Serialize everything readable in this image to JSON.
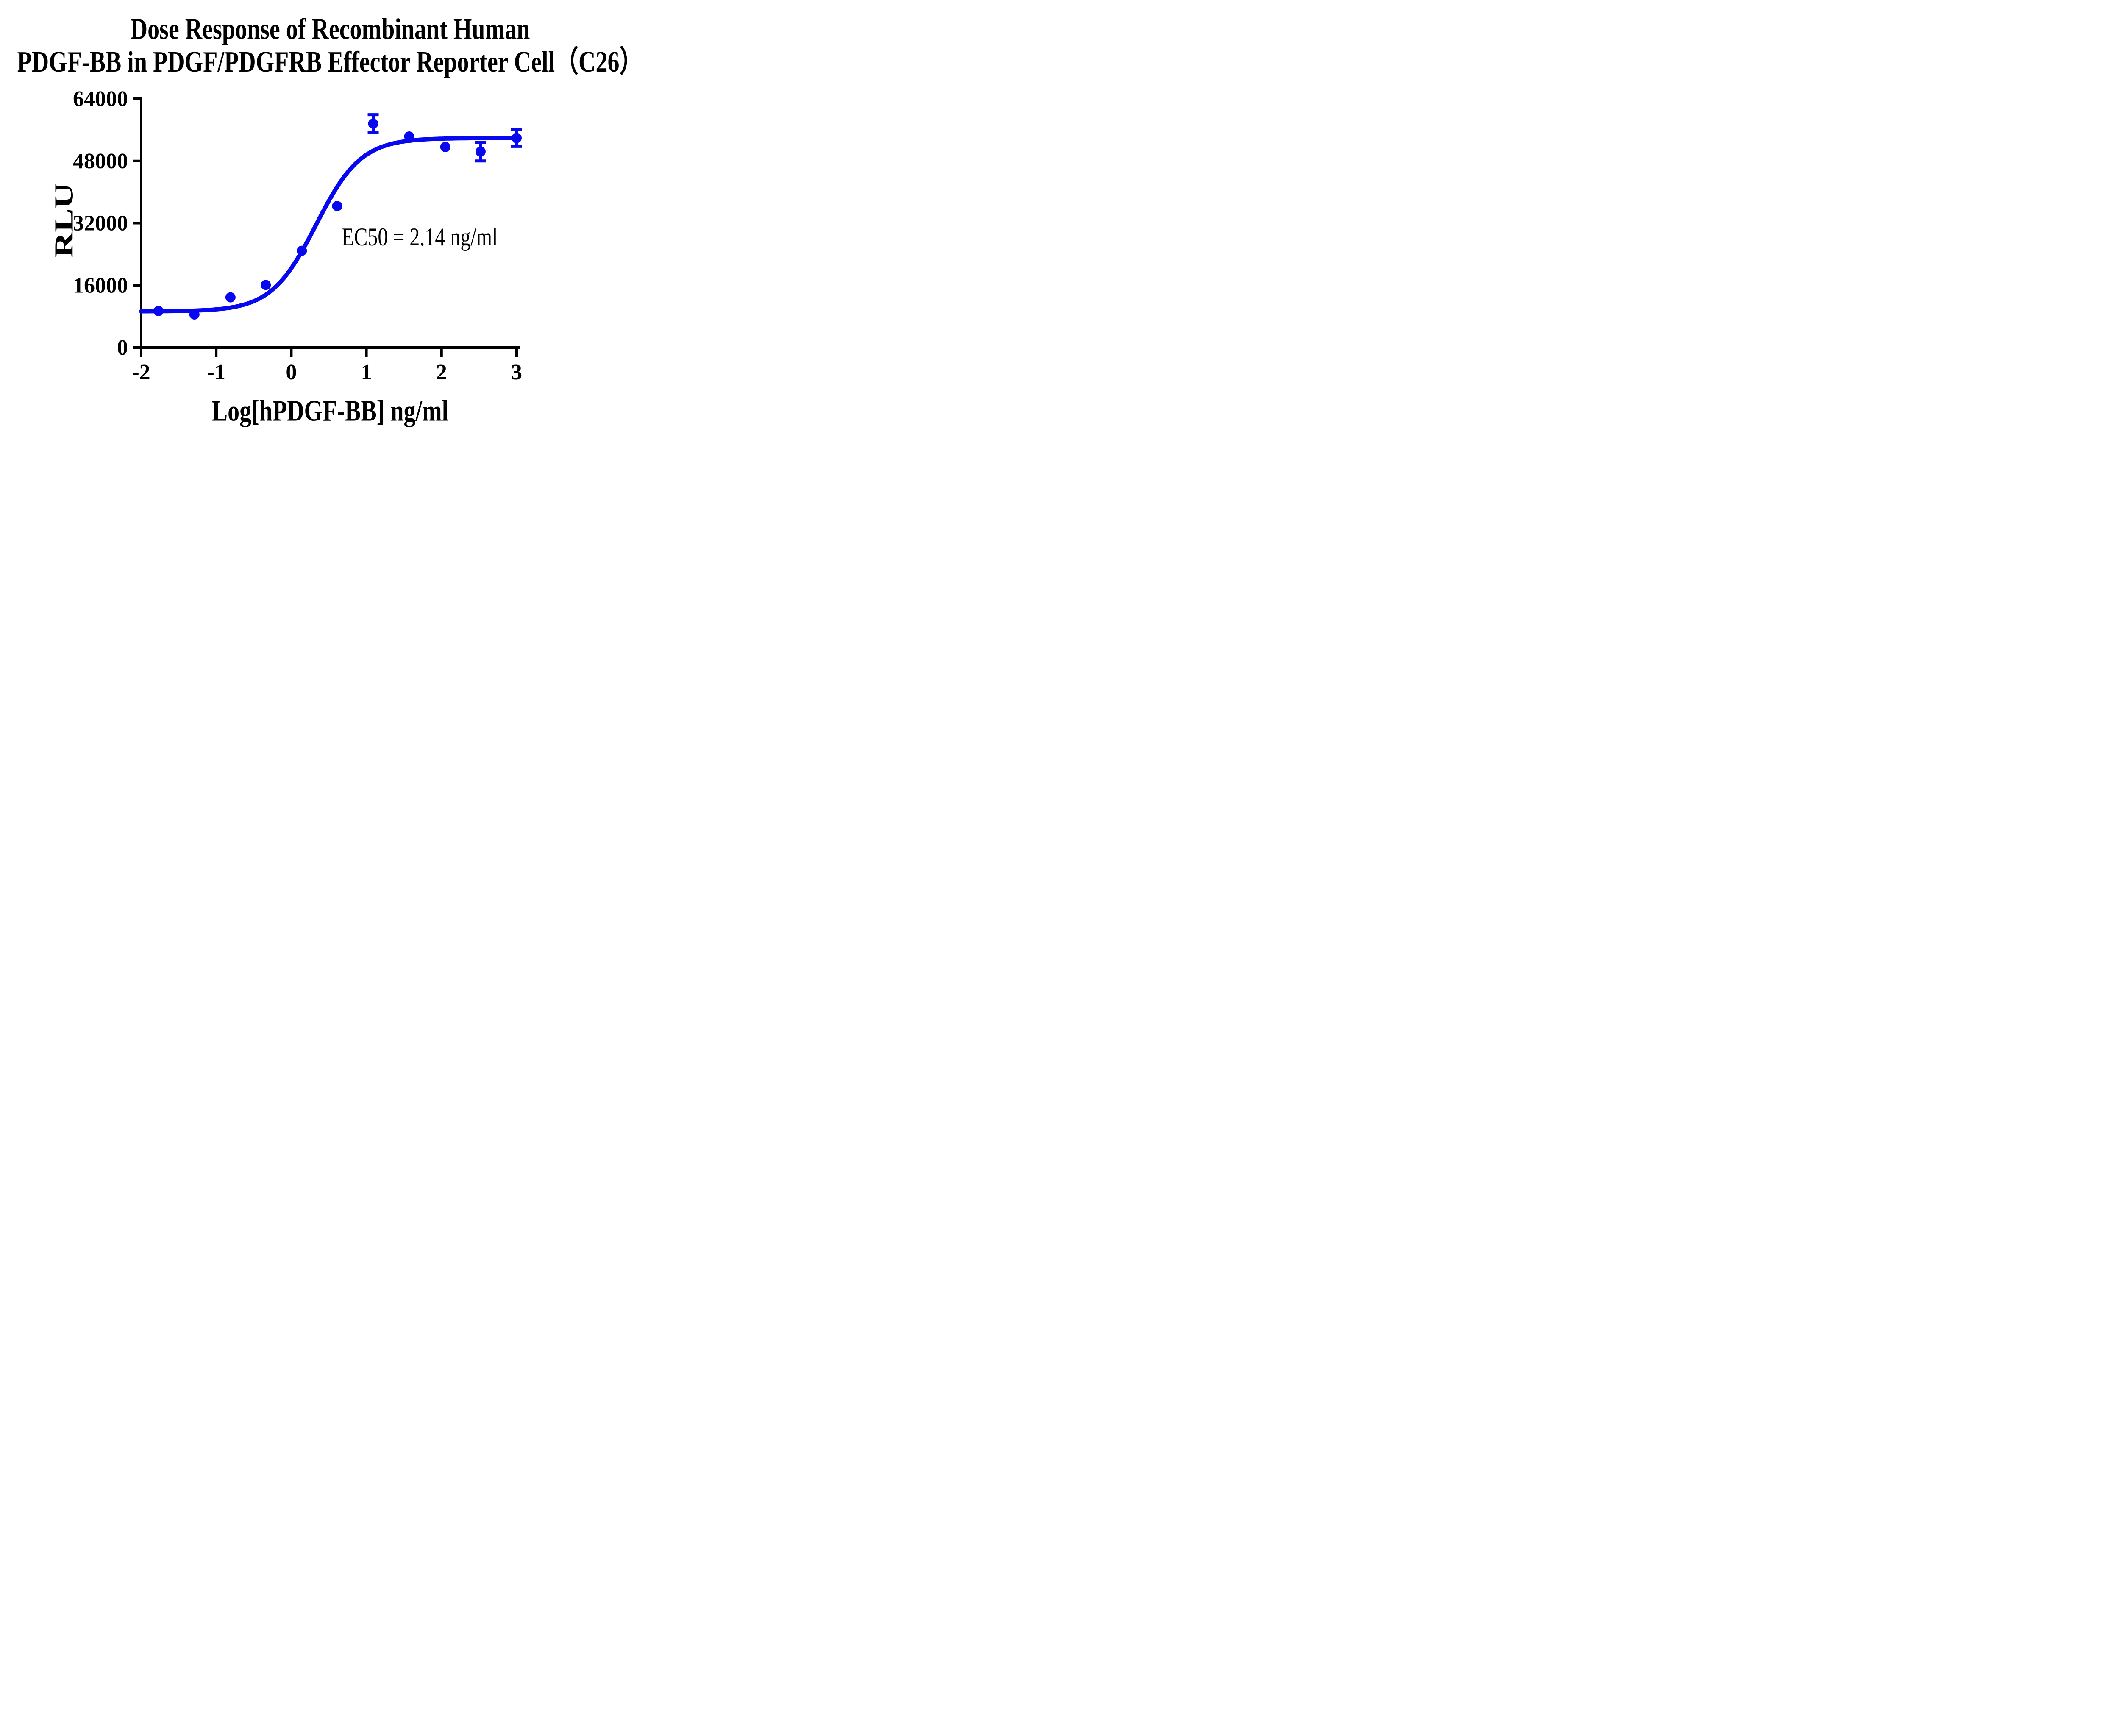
{
  "title": {
    "line1": "Dose Response of Recombinant Human",
    "line2": "PDGF-BB in PDGF/PDGFRB Effector Reporter Cell（C26）"
  },
  "y_axis": {
    "label": "RLU",
    "tick_values": [
      0,
      16000,
      32000,
      48000,
      64000
    ],
    "tick_labels": [
      "0",
      "16000",
      "32000",
      "48000",
      "64000"
    ],
    "range": [
      0,
      64000
    ]
  },
  "x_axis": {
    "label": "Log[hPDGF-BB] ng/ml",
    "tick_values": [
      -2,
      -1,
      0,
      1,
      2,
      3
    ],
    "tick_labels": [
      "-2",
      "-1",
      "0",
      "1",
      "2",
      "3"
    ],
    "range": [
      -2,
      3
    ]
  },
  "annotation": {
    "ec50": "EC50 = 2.14 ng/ml"
  },
  "colors": {
    "series": "#0808F0",
    "axis": "#000000",
    "text": "#000000",
    "background": "#ffffff"
  },
  "chart_data": {
    "type": "scatter",
    "title": "Dose Response of Recombinant Human PDGF-BB in PDGF/PDGFRB Effector Reporter Cell（C26）",
    "xlabel": "Log[hPDGF-BB] ng/ml",
    "ylabel": "RLU",
    "xlim": [
      -2,
      3
    ],
    "ylim": [
      0,
      64000
    ],
    "grid": false,
    "legend": "none",
    "points": [
      {
        "x": -1.77,
        "y": 9400,
        "y_err": null
      },
      {
        "x": -1.29,
        "y": 8500,
        "y_err": null
      },
      {
        "x": -0.81,
        "y": 12900,
        "y_err": null
      },
      {
        "x": -0.34,
        "y": 16100,
        "y_err": null
      },
      {
        "x": 0.14,
        "y": 24900,
        "y_err": null
      },
      {
        "x": 0.61,
        "y": 36400,
        "y_err": null
      },
      {
        "x": 1.09,
        "y": 57600,
        "y_err": 2300
      },
      {
        "x": 1.57,
        "y": 54300,
        "y_err": null
      },
      {
        "x": 2.05,
        "y": 51600,
        "y_err": null
      },
      {
        "x": 2.52,
        "y": 50400,
        "y_err": 2400
      },
      {
        "x": 3.0,
        "y": 53900,
        "y_err": 2150
      }
    ],
    "fit_curve": {
      "model": "4PL",
      "bottom": 9300,
      "top": 53900,
      "log_ec50": 0.3304,
      "hill": 1.45,
      "ec50_ng_ml": 2.14
    },
    "annotation": "EC50 = 2.14 ng/ml"
  }
}
